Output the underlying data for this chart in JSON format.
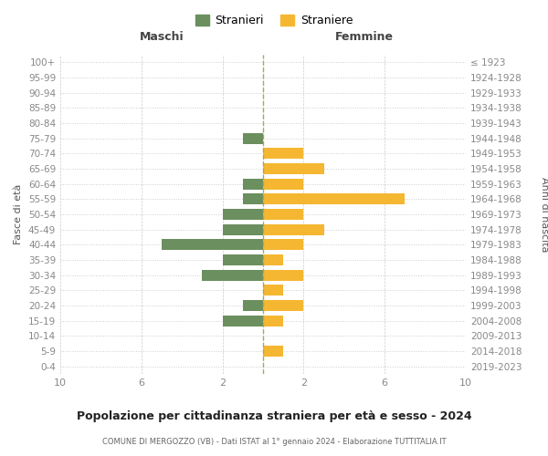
{
  "age_groups": [
    "0-4",
    "5-9",
    "10-14",
    "15-19",
    "20-24",
    "25-29",
    "30-34",
    "35-39",
    "40-44",
    "45-49",
    "50-54",
    "55-59",
    "60-64",
    "65-69",
    "70-74",
    "75-79",
    "80-84",
    "85-89",
    "90-94",
    "95-99",
    "100+"
  ],
  "birth_years": [
    "2019-2023",
    "2014-2018",
    "2009-2013",
    "2004-2008",
    "1999-2003",
    "1994-1998",
    "1989-1993",
    "1984-1988",
    "1979-1983",
    "1974-1978",
    "1969-1973",
    "1964-1968",
    "1959-1963",
    "1954-1958",
    "1949-1953",
    "1944-1948",
    "1939-1943",
    "1934-1938",
    "1929-1933",
    "1924-1928",
    "≤ 1923"
  ],
  "maschi": [
    0,
    0,
    0,
    2,
    1,
    0,
    3,
    2,
    5,
    2,
    2,
    1,
    1,
    0,
    0,
    1,
    0,
    0,
    0,
    0,
    0
  ],
  "femmine": [
    0,
    1,
    0,
    1,
    2,
    1,
    2,
    1,
    2,
    3,
    2,
    7,
    2,
    3,
    2,
    0,
    0,
    0,
    0,
    0,
    0
  ],
  "color_maschi": "#6b8f5e",
  "color_femmine": "#f5b731",
  "dashed_line_color": "#aaa855",
  "title": "Popolazione per cittadinanza straniera per età e sesso - 2024",
  "subtitle": "COMUNE DI MERGOZZO (VB) - Dati ISTAT al 1° gennaio 2024 - Elaborazione TUTTITALIA.IT",
  "header_left": "Maschi",
  "header_right": "Femmine",
  "ylabel_left": "Fasce di età",
  "ylabel_right": "Anni di nascita",
  "legend_maschi": "Stranieri",
  "legend_femmine": "Straniere",
  "background_color": "#ffffff",
  "grid_color": "#cccccc",
  "tick_color": "#888888",
  "label_color": "#555555"
}
